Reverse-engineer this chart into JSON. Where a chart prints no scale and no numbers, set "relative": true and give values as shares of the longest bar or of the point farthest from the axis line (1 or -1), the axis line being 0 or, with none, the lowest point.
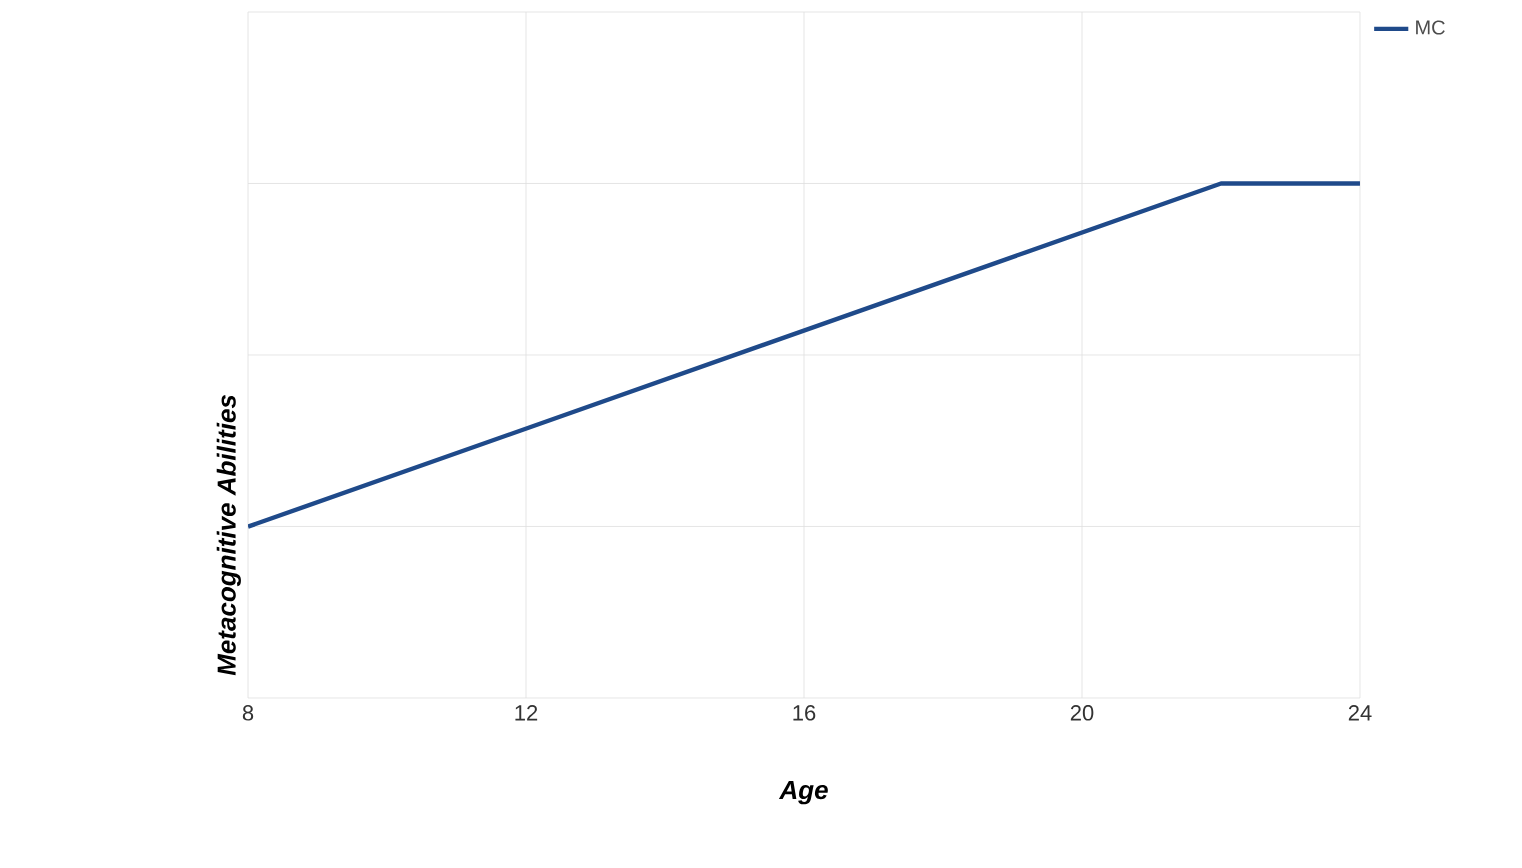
{
  "chart_data": {
    "type": "line",
    "xlabel": "Age",
    "ylabel": "Metacognitive Abilities",
    "relative": true,
    "xlim": [
      8,
      24
    ],
    "xticks": [
      8,
      12,
      16,
      20,
      24
    ],
    "grid": true,
    "legend": "top right",
    "marker": "none",
    "line_style": "solid",
    "series": [
      {
        "name": "MC",
        "color": "#1f4a8a",
        "x": [
          8,
          22,
          24
        ],
        "values": [
          0.333,
          1,
          1
        ]
      }
    ]
  }
}
